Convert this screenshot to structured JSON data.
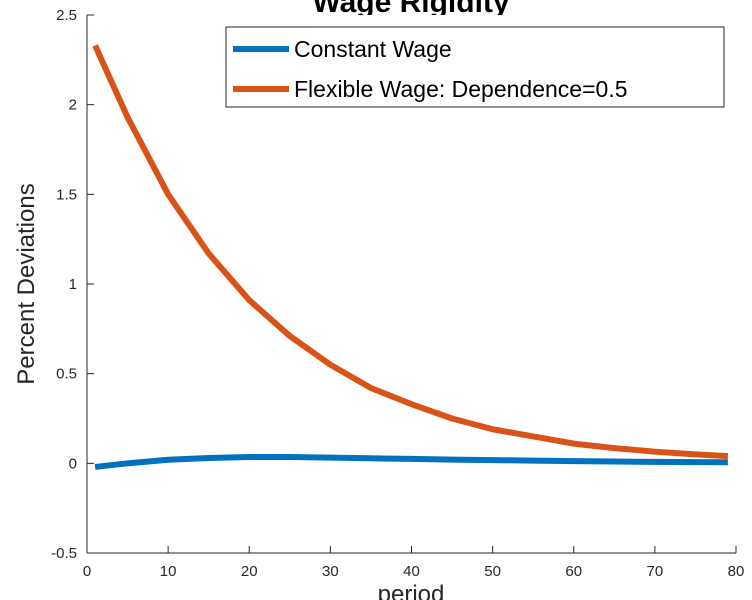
{
  "chart_data": {
    "type": "line",
    "title": "Wage Rigidity",
    "xlabel": "period",
    "ylabel": "Percent Deviations",
    "xlim": [
      0,
      80
    ],
    "ylim": [
      -0.5,
      2.5
    ],
    "xticks": [
      0,
      10,
      20,
      30,
      40,
      50,
      60,
      70,
      80
    ],
    "yticks": [
      -0.5,
      0,
      0.5,
      1,
      1.5,
      2,
      2.5
    ],
    "xtick_labels": [
      "0",
      "10",
      "20",
      "30",
      "40",
      "50",
      "60",
      "70",
      "80"
    ],
    "ytick_labels": [
      "-0.5",
      "0",
      "0.5",
      "1",
      "1.5",
      "2",
      "2.5"
    ],
    "grid": false,
    "legend_position": "top-right",
    "series": [
      {
        "name": "Constant Wage",
        "color": "#0072BD",
        "x": [
          1,
          5,
          10,
          15,
          20,
          25,
          30,
          35,
          40,
          45,
          50,
          55,
          60,
          65,
          70,
          75,
          79
        ],
        "y": [
          -0.02,
          0.0,
          0.02,
          0.03,
          0.035,
          0.035,
          0.032,
          0.028,
          0.025,
          0.021,
          0.018,
          0.015,
          0.012,
          0.01,
          0.008,
          0.007,
          0.006
        ]
      },
      {
        "name": "Flexible Wage: Dependence=0.5",
        "color": "#D95319",
        "x": [
          1,
          5,
          10,
          15,
          20,
          25,
          30,
          35,
          40,
          45,
          50,
          55,
          60,
          65,
          70,
          75,
          79
        ],
        "y": [
          2.33,
          1.93,
          1.5,
          1.17,
          0.91,
          0.71,
          0.55,
          0.42,
          0.33,
          0.25,
          0.19,
          0.15,
          0.11,
          0.085,
          0.065,
          0.05,
          0.04
        ]
      }
    ]
  }
}
